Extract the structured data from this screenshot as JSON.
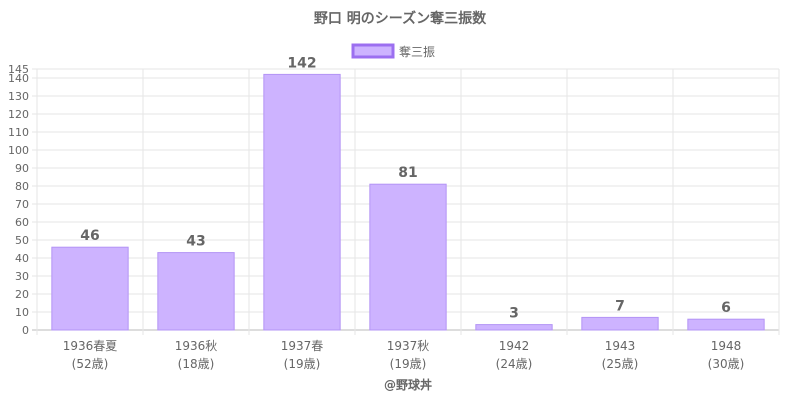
{
  "chart_data": {
    "type": "bar",
    "title": "野口 明のシーズン奪三振数",
    "legend": {
      "position": "top",
      "label": "奪三振"
    },
    "categories": [
      [
        "1936春夏",
        "(52歳)"
      ],
      [
        "1936秋",
        "(18歳)"
      ],
      [
        "1937春",
        "(19歳)"
      ],
      [
        "1937秋",
        "(19歳)"
      ],
      [
        "1942",
        "(24歳)"
      ],
      [
        "1943",
        "(25歳)"
      ],
      [
        "1948",
        "(30歳)"
      ]
    ],
    "series": [
      {
        "name": "奪三振",
        "values": [
          46,
          43,
          142,
          81,
          3,
          7,
          6
        ]
      }
    ],
    "data_labels": [
      "46",
      "43",
      "142",
      "81",
      "3",
      "7",
      "6"
    ],
    "ylim": [
      0,
      145
    ],
    "yticks": [
      0,
      10,
      20,
      30,
      40,
      50,
      60,
      70,
      80,
      90,
      100,
      110,
      120,
      130,
      140,
      145
    ],
    "grid": true,
    "xlabel": "@野球丼",
    "colors": {
      "bar_fill": "#cdb3ff",
      "bar_stroke": "#b394f5",
      "legend_stroke": "#9c6ff0"
    }
  }
}
